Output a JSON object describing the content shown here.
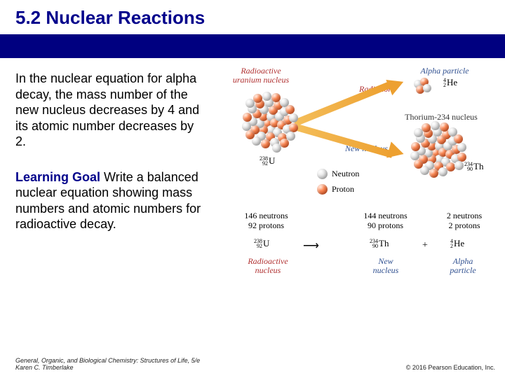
{
  "title": "5.2  Nuclear Reactions",
  "paragraph1": "In the nuclear equation for alpha decay, the mass number of the new nucleus decreases by 4 and its atomic number decreases by 2.",
  "learning_goal_label": "Learning Goal",
  "learning_goal_text": "  Write a balanced nuclear equation showing mass numbers and atomic numbers for radioactive decay.",
  "footer_left_line1": "General, Organic, and Biological Chemistry: Structures of Life, 5/e",
  "footer_left_line2": "Karen C. Timberlake",
  "footer_right": "© 2016 Pearson Education, Inc.",
  "diagram": {
    "labels": {
      "radioactive": "Radioactive\nuranium nucleus",
      "alpha_particle": "Alpha particle",
      "radiation": "Radiation",
      "thorium": "Thorium-234 nucleus",
      "new_nucleus": "New nucleus",
      "neutron": "Neutron",
      "proton": "Proton"
    },
    "colors": {
      "proton": "#e5602a",
      "neutron": "#d8d8d8",
      "arrow_start": "#f4be5a",
      "arrow_end": "#eda030",
      "navy": "#000080",
      "title_blue": "#00008b"
    },
    "nuclides": {
      "U": {
        "mass": "238",
        "z": "92",
        "sym": "U"
      },
      "Th": {
        "mass": "234",
        "z": "90",
        "sym": "Th"
      },
      "He": {
        "mass": "4",
        "z": "2",
        "sym": "He"
      }
    },
    "counts": {
      "U": {
        "line1": "146 neutrons",
        "line2": "92 protons"
      },
      "Th": {
        "line1": "144 neutrons",
        "line2": "90 protons"
      },
      "He": {
        "line1": "2 neutrons",
        "line2": "2 protons"
      }
    },
    "bottom_labels": {
      "radioactive": "Radioactive\nnucleus",
      "new": "New\nnucleus",
      "alpha": "Alpha\nparticle"
    }
  }
}
